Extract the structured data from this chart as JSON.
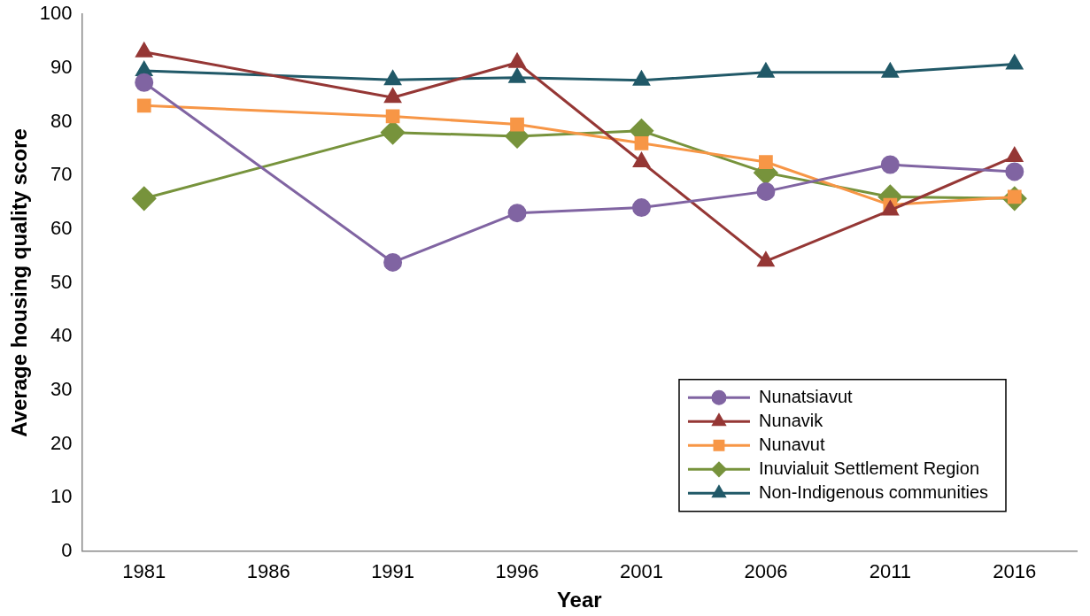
{
  "chart_data": {
    "type": "line",
    "xlabel": "Year",
    "ylabel": "Average housing quality score",
    "categories": [
      "1981",
      "1986",
      "1991",
      "1996",
      "2001",
      "2006",
      "2011",
      "2016"
    ],
    "ylim": [
      0,
      100
    ],
    "yticks": [
      0,
      10,
      20,
      30,
      40,
      50,
      60,
      70,
      80,
      90,
      100
    ],
    "grid": false,
    "legend": "bottom right",
    "line_style": "solid",
    "series": [
      {
        "name": "Nunatsiavut",
        "color": "#8064a2",
        "marker": "circle",
        "values": [
          87.3,
          null,
          53.8,
          63,
          64,
          67,
          72,
          70.7
        ]
      },
      {
        "name": "Nunavik",
        "color": "#953735",
        "marker": "triangle",
        "values": [
          93,
          null,
          84.5,
          91,
          72.5,
          54,
          63.5,
          73.5
        ]
      },
      {
        "name": "Nunavut",
        "color": "#f79646",
        "marker": "square",
        "values": [
          83,
          null,
          81,
          79.5,
          76,
          72.5,
          64.5,
          66
        ]
      },
      {
        "name": "Inuvialuit Settlement Region",
        "color": "#77933c",
        "marker": "diamond",
        "values": [
          65.7,
          null,
          78,
          77.3,
          78.3,
          70.5,
          66,
          65.7
        ]
      },
      {
        "name": "Non-Indigenous communities",
        "color": "#215968",
        "marker": "triangle",
        "values": [
          89.5,
          null,
          87.8,
          88.2,
          87.7,
          89.2,
          89.2,
          90.7
        ]
      }
    ]
  }
}
